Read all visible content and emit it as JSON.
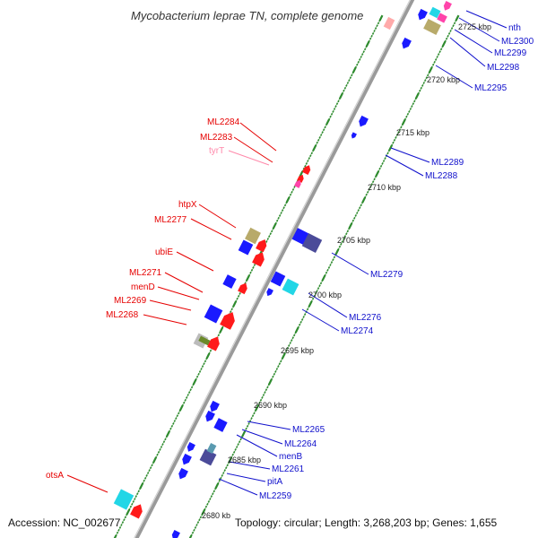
{
  "title": "Mycobacterium leprae TN, complete genome",
  "accession": "Accession: NC_002677",
  "summary": "Topology: circular; Length: 3,268,203 bp; Genes: 1,655",
  "colors": {
    "forward_label": "#e60000",
    "reverse_label": "#1010cc",
    "trna_label": "#ff88aa",
    "backbone": "#9a9a9a",
    "tick": "#2e8b2e",
    "gene_red": "#ff1a1a",
    "gene_blue": "#1a1aff",
    "gene_cyan": "#22d6e6",
    "gene_olive": "#b8aa6a",
    "gene_slate": "#4b4b99",
    "gene_pink": "#ff44aa",
    "gene_green": "#6b8a2a",
    "gene_gray": "#bbbbbb"
  },
  "kbp_ticks": [
    "2725 kbp",
    "2720 kbp",
    "2715 kbp",
    "2710 kbp",
    "2705 kbp",
    "2700 kbp",
    "2695 kbp",
    "2690 kbp",
    "2685 kbp",
    "2680 kb"
  ],
  "left_labels": [
    "ML2284",
    "ML2283",
    "tyrT",
    "htpX",
    "ML2277",
    "ubiE",
    "ML2271",
    "menD",
    "ML2269",
    "ML2268",
    "otsA"
  ],
  "right_labels": [
    "nth",
    "ML2300",
    "ML2299",
    "ML2298",
    "ML2295",
    "ML2289",
    "ML2288",
    "ML2279",
    "ML2276",
    "ML2274",
    "ML2265",
    "ML2264",
    "menB",
    "ML2261",
    "pitA",
    "ML2259"
  ]
}
